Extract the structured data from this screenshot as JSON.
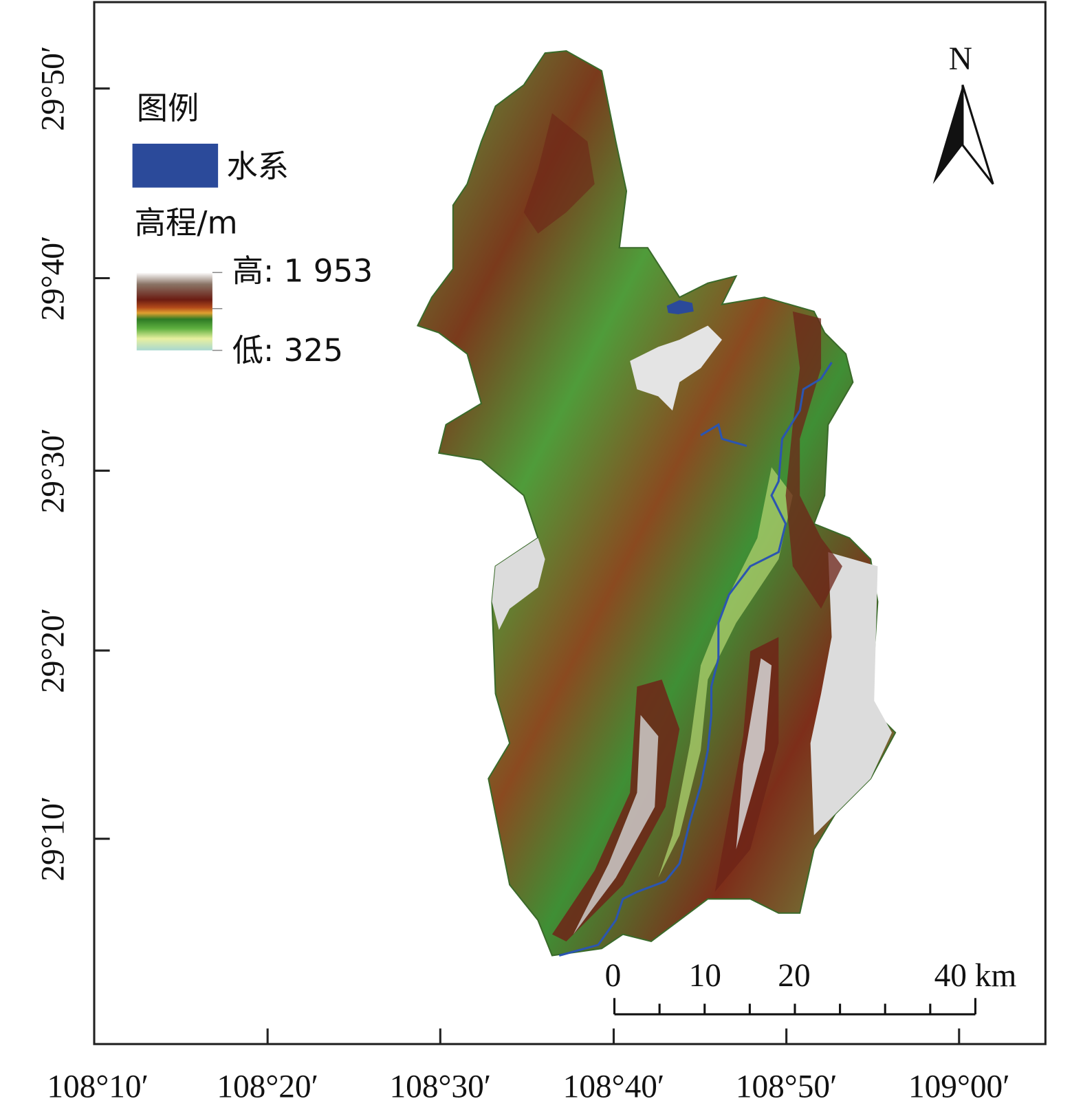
{
  "map": {
    "legend": {
      "title": "图例",
      "water": "水系",
      "elevation_title": "高程/m",
      "high": "高: 1 953",
      "low": "低: 325"
    },
    "north": "N",
    "scale": [
      "0",
      "10",
      "20",
      "40 km"
    ],
    "lat_labels": [
      "29°50′",
      "29°40′",
      "29°30′",
      "29°20′",
      "29°10′"
    ],
    "lon_labels": [
      "108°10′",
      "108°20′",
      "108°30′",
      "108°40′",
      "108°50′",
      "109°00′"
    ]
  }
}
